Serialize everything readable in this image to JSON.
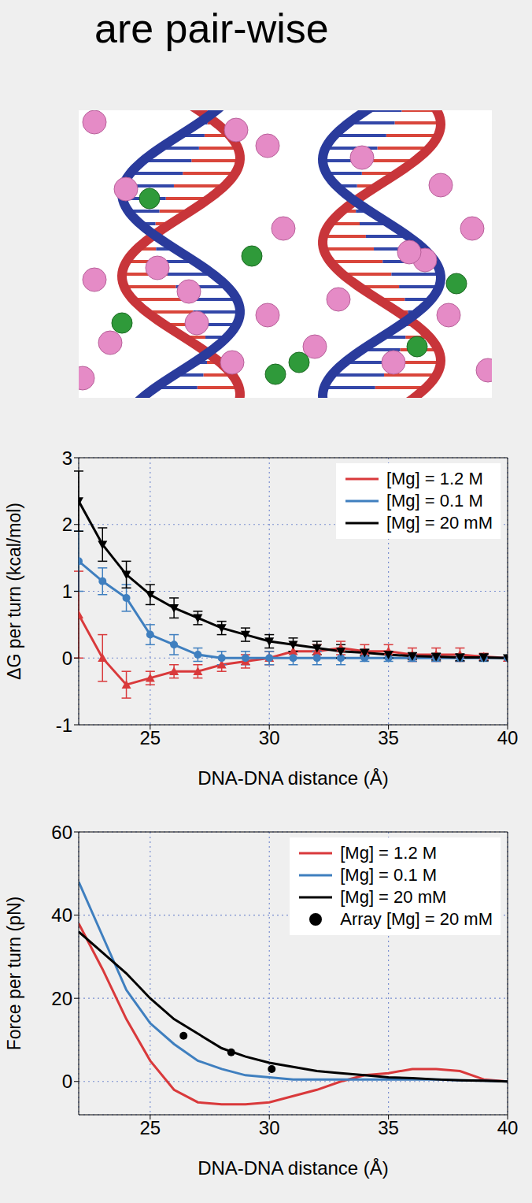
{
  "heading": "are pair-wise",
  "chart_data": [
    {
      "type": "line",
      "x_label": "DNA-DNA distance (Å)",
      "y_label": "ΔG per turn (kcal/mol)",
      "x": [
        22,
        23,
        24,
        25,
        26,
        27,
        28,
        29,
        30,
        31,
        32,
        33,
        34,
        35,
        36,
        37,
        38,
        39,
        40
      ],
      "series": [
        {
          "name": "[Mg] = 1.2 M",
          "color": "#d9393b",
          "marker": "triangle-up",
          "values": [
            0.65,
            0.0,
            -0.4,
            -0.3,
            -0.2,
            -0.2,
            -0.1,
            -0.05,
            0.0,
            0.1,
            0.1,
            0.15,
            0.1,
            0.1,
            0.05,
            0.05,
            0.05,
            0.02,
            0.0
          ],
          "errors": [
            0.65,
            0.35,
            0.2,
            0.1,
            0.1,
            0.1,
            0.1,
            0.1,
            0.1,
            0.1,
            0.1,
            0.1,
            0.1,
            0.1,
            0.1,
            0.1,
            0.1,
            0.05,
            0.0
          ]
        },
        {
          "name": "[Mg] = 0.1 M",
          "color": "#3f7fbf",
          "marker": "circle",
          "values": [
            1.45,
            1.15,
            0.9,
            0.35,
            0.2,
            0.05,
            0.0,
            0.0,
            0.0,
            0.0,
            0.0,
            0.0,
            0.0,
            0.0,
            0.0,
            0.0,
            0.0,
            0.0,
            0.0
          ],
          "errors": [
            0.45,
            0.2,
            0.2,
            0.15,
            0.15,
            0.1,
            0.1,
            0.1,
            0.1,
            0.1,
            0.1,
            0.1,
            0.05,
            0.05,
            0.05,
            0.05,
            0.05,
            0.05,
            0.0
          ]
        },
        {
          "name": "[Mg] = 20 mM",
          "color": "#000000",
          "marker": "triangle-down",
          "values": [
            2.35,
            1.7,
            1.25,
            0.95,
            0.75,
            0.6,
            0.45,
            0.35,
            0.25,
            0.2,
            0.15,
            0.1,
            0.08,
            0.05,
            0.03,
            0.02,
            0.01,
            0.01,
            0.0
          ],
          "errors": [
            0.45,
            0.25,
            0.2,
            0.15,
            0.15,
            0.1,
            0.1,
            0.1,
            0.1,
            0.1,
            0.1,
            0.1,
            0.05,
            0.05,
            0.05,
            0.05,
            0.05,
            0.05,
            0.0
          ]
        }
      ],
      "xlim": [
        22,
        40
      ],
      "xticks": [
        25,
        30,
        35,
        40
      ],
      "ylim": [
        -1,
        3
      ],
      "yticks": [
        -1,
        0,
        1,
        2,
        3
      ],
      "grid": true,
      "legend": "upper right"
    },
    {
      "type": "line",
      "x_label": "DNA-DNA distance (Å)",
      "y_label": "Force per turn (pN)",
      "x": [
        22,
        23,
        24,
        25,
        26,
        27,
        28,
        29,
        30,
        31,
        32,
        33,
        34,
        35,
        36,
        37,
        38,
        39,
        40
      ],
      "series": [
        {
          "name": "[Mg] = 1.2 M",
          "color": "#d9393b",
          "line_style": "solid",
          "values": [
            38,
            27,
            15,
            5,
            -2,
            -5,
            -5.5,
            -5.5,
            -5,
            -3.5,
            -2,
            0,
            1.5,
            2,
            3,
            3,
            2.5,
            0.5,
            0
          ]
        },
        {
          "name": "[Mg] = 0.1 M",
          "color": "#3f7fbf",
          "line_style": "solid",
          "values": [
            48,
            35,
            22,
            14,
            9,
            5,
            3,
            1.5,
            1,
            0.5,
            0.5,
            0.5,
            0.5,
            0.5,
            0.5,
            0.5,
            0.3,
            0.2,
            0
          ]
        },
        {
          "name": "[Mg] = 20 mM",
          "color": "#000000",
          "line_style": "solid",
          "values": [
            36,
            31,
            26,
            20,
            15,
            11.5,
            8,
            6,
            4.5,
            3.5,
            2.5,
            2,
            1.5,
            1,
            0.8,
            0.5,
            0.3,
            0.2,
            0
          ]
        },
        {
          "name": "Array [Mg] = 20 mM",
          "type": "scatter",
          "color": "#000000",
          "marker": "circle",
          "x": [
            26.4,
            28.4,
            30.1
          ],
          "values": [
            11,
            7,
            3
          ]
        }
      ],
      "xlim": [
        22,
        40
      ],
      "xticks": [
        25,
        30,
        35,
        40
      ],
      "ylim": [
        -8,
        60
      ],
      "yticks": [
        0,
        20,
        40,
        60
      ],
      "grid": true,
      "legend": "upper right"
    }
  ]
}
